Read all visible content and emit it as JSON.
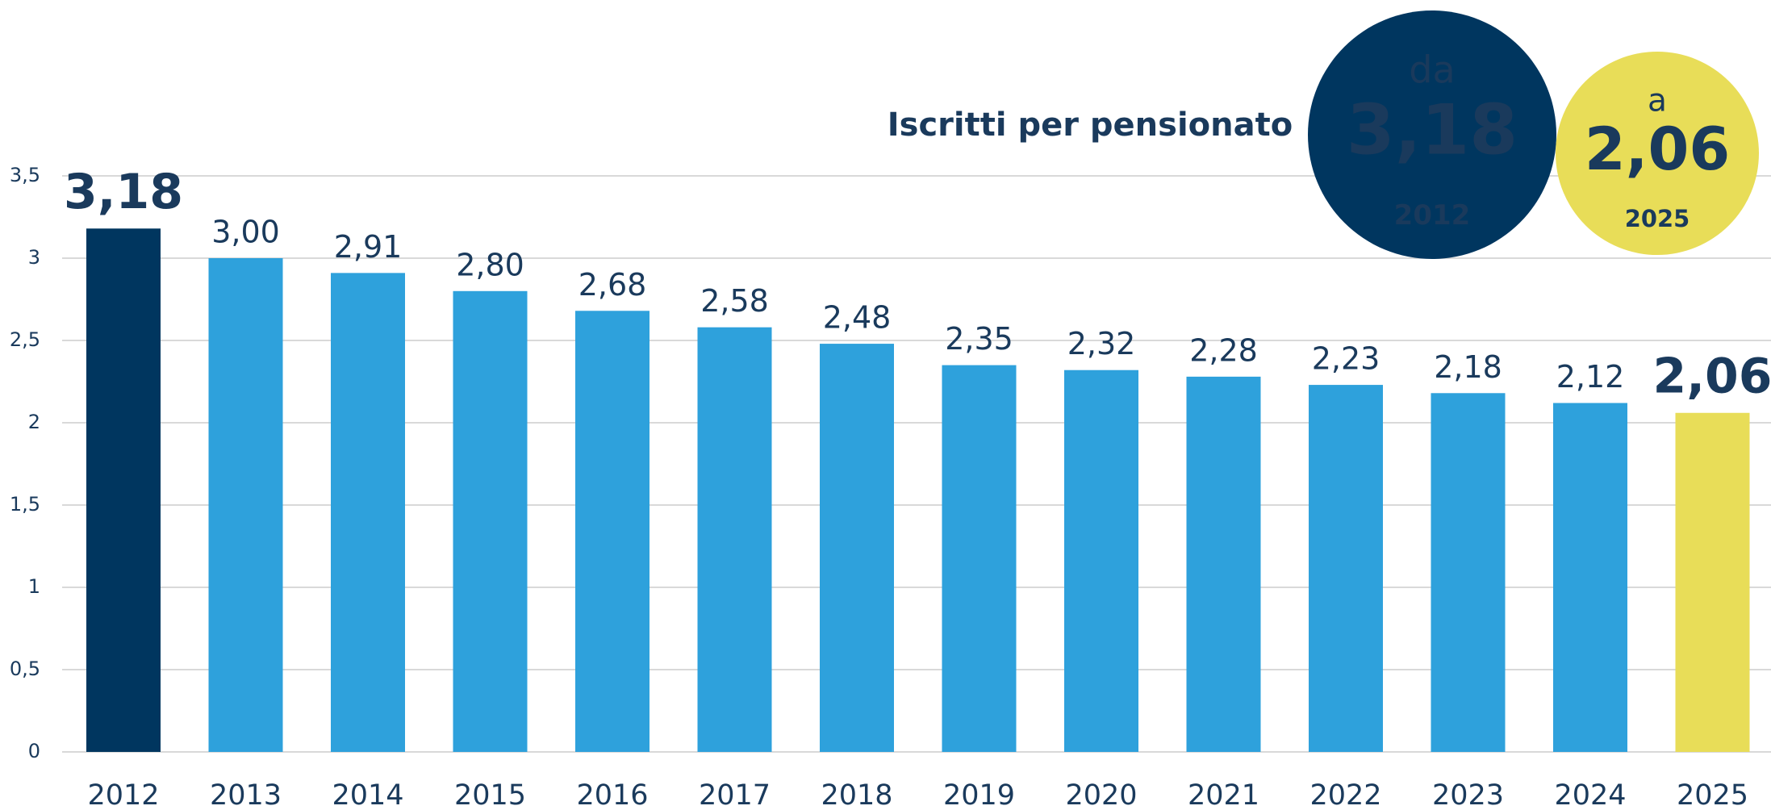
{
  "chart_data": {
    "type": "bar",
    "title": "Iscritti per pensionato",
    "categories": [
      "2012",
      "2013",
      "2014",
      "2015",
      "2016",
      "2017",
      "2018",
      "2019",
      "2020",
      "2021",
      "2022",
      "2023",
      "2024",
      "2025"
    ],
    "values": [
      3.18,
      3.0,
      2.91,
      2.8,
      2.68,
      2.58,
      2.48,
      2.35,
      2.32,
      2.28,
      2.23,
      2.18,
      2.12,
      2.06
    ],
    "value_labels": [
      "3,18",
      "3,00",
      "2,91",
      "2,80",
      "2,68",
      "2,58",
      "2,48",
      "2,35",
      "2,32",
      "2,28",
      "2,23",
      "2,18",
      "2,12",
      "2,06"
    ],
    "colors": [
      "#00365f",
      "#2ea1dc",
      "#2ea1dc",
      "#2ea1dc",
      "#2ea1dc",
      "#2ea1dc",
      "#2ea1dc",
      "#2ea1dc",
      "#2ea1dc",
      "#2ea1dc",
      "#2ea1dc",
      "#2ea1dc",
      "#2ea1dc",
      "#e8dd58"
    ],
    "highlighted": [
      true,
      false,
      false,
      false,
      false,
      false,
      false,
      false,
      false,
      false,
      false,
      false,
      false,
      true
    ],
    "ylim": [
      0,
      3.5
    ],
    "yticks": [
      0,
      {
        "value": 0.5,
        "label": "0,5"
      },
      1,
      {
        "value": 1.5,
        "label": "1,5"
      },
      2,
      {
        "value": 2.5,
        "label": "2,5"
      },
      3,
      {
        "value": 3.5,
        "label": "3,5"
      }
    ],
    "grid": true,
    "badges": [
      {
        "prefix": "da",
        "value": "3,18",
        "year": "2012",
        "color": "#00365f"
      },
      {
        "prefix": "a",
        "value": "2,06",
        "year": "2025",
        "color": "#e8dd58"
      }
    ]
  }
}
